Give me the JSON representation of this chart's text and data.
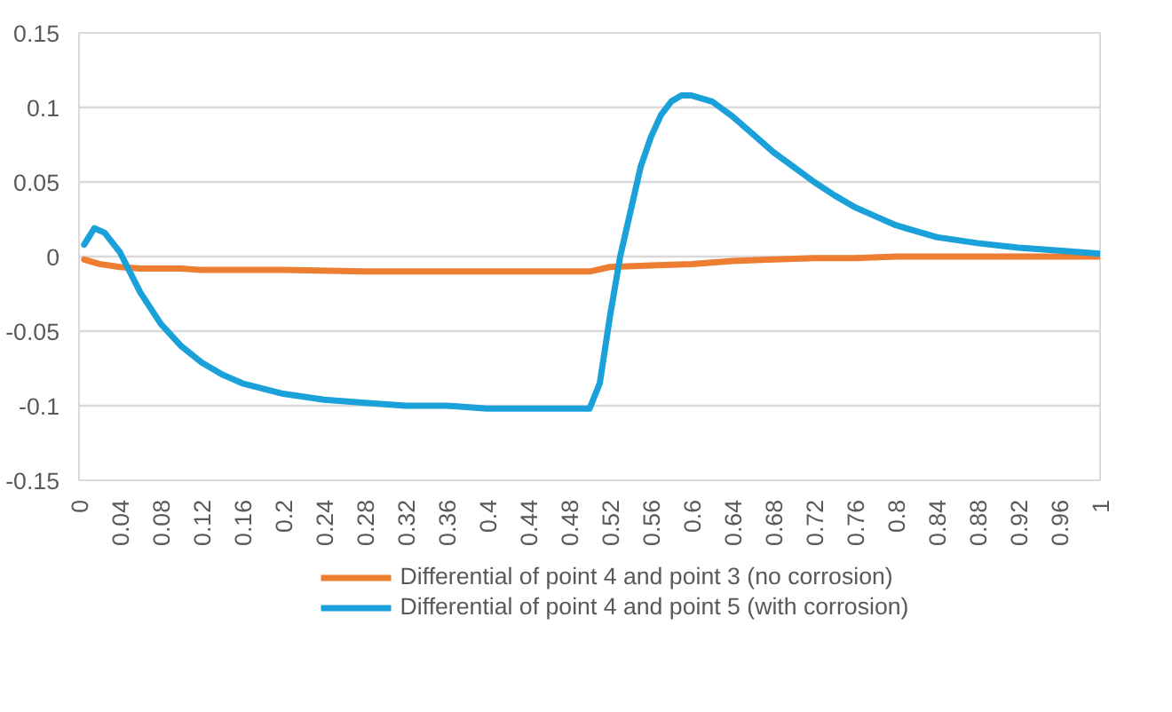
{
  "chart_data": {
    "type": "line",
    "xlim": [
      0,
      1
    ],
    "xticks": [
      0,
      0.04,
      0.08,
      0.12,
      0.16,
      0.2,
      0.24,
      0.28,
      0.32,
      0.36,
      0.4,
      0.44,
      0.48,
      0.52,
      0.56,
      0.6,
      0.64,
      0.68,
      0.72,
      0.76,
      0.8,
      0.84,
      0.88,
      0.92,
      0.96,
      1
    ],
    "ylim": [
      -0.15,
      0.15
    ],
    "yticks": [
      -0.15,
      -0.1,
      -0.05,
      0,
      0.05,
      0.1,
      0.15
    ],
    "grid": "y",
    "legend": "bottom",
    "series": [
      {
        "name": "Differential of point 4 and point 3 (no corrosion)",
        "color": "#ed7d31",
        "x": [
          0.005,
          0.02,
          0.04,
          0.06,
          0.08,
          0.1,
          0.12,
          0.2,
          0.28,
          0.36,
          0.44,
          0.5,
          0.52,
          0.56,
          0.6,
          0.64,
          0.68,
          0.72,
          0.76,
          0.8,
          0.88,
          0.96,
          1
        ],
        "values": [
          -0.002,
          -0.005,
          -0.007,
          -0.008,
          -0.008,
          -0.008,
          -0.009,
          -0.009,
          -0.01,
          -0.01,
          -0.01,
          -0.01,
          -0.007,
          -0.006,
          -0.005,
          -0.003,
          -0.002,
          -0.001,
          -0.001,
          0,
          0,
          0,
          0
        ]
      },
      {
        "name": "Differential of point 4 and point 5 (with corrosion)",
        "color": "#1ba1da",
        "x": [
          0.005,
          0.015,
          0.025,
          0.04,
          0.06,
          0.08,
          0.1,
          0.12,
          0.14,
          0.16,
          0.2,
          0.24,
          0.28,
          0.32,
          0.36,
          0.4,
          0.44,
          0.5,
          0.51,
          0.52,
          0.53,
          0.54,
          0.55,
          0.56,
          0.57,
          0.58,
          0.59,
          0.6,
          0.62,
          0.64,
          0.66,
          0.68,
          0.7,
          0.72,
          0.74,
          0.76,
          0.78,
          0.8,
          0.84,
          0.88,
          0.92,
          0.96,
          1
        ],
        "values": [
          0.008,
          0.019,
          0.016,
          0.003,
          -0.024,
          -0.045,
          -0.06,
          -0.071,
          -0.079,
          -0.085,
          -0.092,
          -0.096,
          -0.098,
          -0.1,
          -0.1,
          -0.102,
          -0.102,
          -0.102,
          -0.085,
          -0.04,
          0.0,
          0.03,
          0.06,
          0.08,
          0.095,
          0.104,
          0.108,
          0.108,
          0.104,
          0.094,
          0.082,
          0.07,
          0.06,
          0.05,
          0.041,
          0.033,
          0.027,
          0.021,
          0.013,
          0.009,
          0.006,
          0.004,
          0.002
        ]
      }
    ]
  }
}
